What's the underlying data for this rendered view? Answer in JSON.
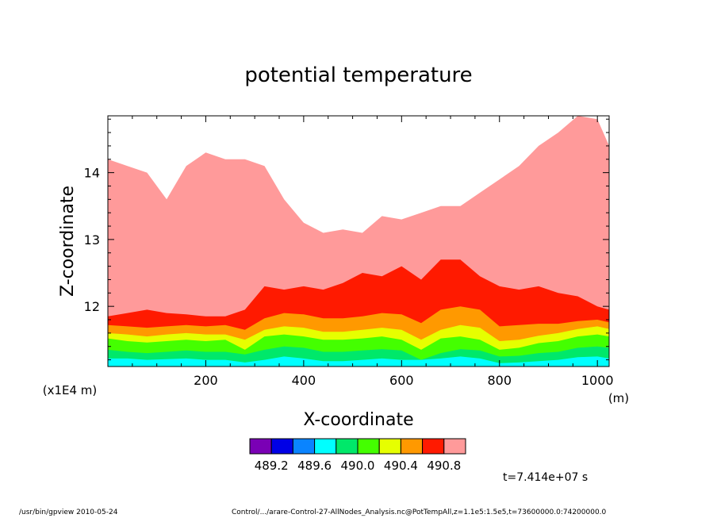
{
  "chart_data": {
    "type": "heatmap",
    "title": "potential temperature",
    "xlabel": "X-coordinate",
    "ylabel": "Z-coordinate",
    "x_unit": "(m)",
    "y_unit": "(x1E4 m)",
    "xlim": [
      0,
      1024
    ],
    "ylim": [
      11.1,
      14.85
    ],
    "x_ticks": [
      200,
      400,
      600,
      800,
      1000
    ],
    "x_tick_labels": [
      "200",
      "400",
      "600",
      "800",
      "1000"
    ],
    "y_ticks": [
      12,
      13,
      14
    ],
    "y_tick_labels": [
      "12",
      "13",
      "14"
    ],
    "colorbar": {
      "colors": [
        "#7a00b5",
        "#0000e6",
        "#0a84ff",
        "#00ffff",
        "#00e86a",
        "#44ff00",
        "#e6ff00",
        "#ff9900",
        "#ff1a00",
        "#ff9a9a"
      ],
      "tick_labels": [
        "489.2",
        "489.6",
        "490.0",
        "490.4",
        "490.8"
      ]
    },
    "contour_boundaries": {
      "x": [
        0,
        40,
        80,
        120,
        160,
        200,
        240,
        280,
        320,
        360,
        400,
        440,
        480,
        520,
        560,
        600,
        640,
        680,
        720,
        760,
        800,
        840,
        880,
        920,
        960,
        1000,
        1024
      ],
      "cyan_top": [
        11.22,
        11.22,
        11.2,
        11.21,
        11.22,
        11.2,
        11.2,
        11.16,
        11.2,
        11.25,
        11.22,
        11.18,
        11.18,
        11.2,
        11.22,
        11.2,
        11.2,
        11.22,
        11.25,
        11.22,
        11.15,
        11.16,
        11.18,
        11.2,
        11.24,
        11.25,
        11.22
      ],
      "green_top": [
        11.35,
        11.32,
        11.3,
        11.32,
        11.34,
        11.32,
        11.32,
        11.28,
        11.35,
        11.4,
        11.38,
        11.32,
        11.32,
        11.34,
        11.36,
        11.34,
        11.2,
        11.3,
        11.36,
        11.34,
        11.25,
        11.26,
        11.3,
        11.32,
        11.38,
        11.4,
        11.38
      ],
      "lime_top": [
        11.52,
        11.48,
        11.46,
        11.48,
        11.5,
        11.48,
        11.5,
        11.35,
        11.55,
        11.58,
        11.55,
        11.5,
        11.5,
        11.52,
        11.55,
        11.5,
        11.35,
        11.52,
        11.55,
        11.5,
        11.35,
        11.38,
        11.45,
        11.48,
        11.55,
        11.58,
        11.55
      ],
      "yellow_top": [
        11.6,
        11.58,
        11.55,
        11.58,
        11.6,
        11.58,
        11.58,
        11.5,
        11.65,
        11.7,
        11.68,
        11.62,
        11.62,
        11.65,
        11.68,
        11.65,
        11.5,
        11.65,
        11.72,
        11.68,
        11.48,
        11.5,
        11.56,
        11.6,
        11.66,
        11.7,
        11.66
      ],
      "orange_top": [
        11.72,
        11.7,
        11.68,
        11.7,
        11.72,
        11.7,
        11.72,
        11.65,
        11.82,
        11.9,
        11.88,
        11.82,
        11.82,
        11.85,
        11.9,
        11.88,
        11.75,
        11.95,
        12.0,
        11.95,
        11.7,
        11.72,
        11.74,
        11.74,
        11.78,
        11.8,
        11.76
      ],
      "red_top": [
        11.85,
        11.9,
        11.95,
        11.9,
        11.88,
        11.85,
        11.85,
        11.95,
        12.3,
        12.25,
        12.3,
        12.25,
        12.35,
        12.5,
        12.45,
        12.6,
        12.4,
        12.7,
        12.7,
        12.45,
        12.3,
        12.25,
        12.3,
        12.2,
        12.15,
        12.0,
        11.95
      ],
      "pink_top": [
        14.2,
        14.1,
        14.0,
        13.6,
        14.1,
        14.3,
        14.2,
        14.2,
        14.1,
        13.6,
        13.25,
        13.1,
        13.15,
        13.1,
        13.35,
        13.3,
        13.4,
        13.5,
        13.5,
        13.7,
        13.9,
        14.1,
        14.4,
        14.6,
        14.85,
        14.8,
        14.4
      ]
    }
  },
  "time_label": "t=7.414e+07 s",
  "footer": {
    "left": "/usr/bin/gpview  2010-05-24",
    "right": "Control/.../arare-Control-27-AllNodes_Analysis.nc@PotTempAll,z=1.1e5:1.5e5,t=73600000.0:74200000.0"
  }
}
